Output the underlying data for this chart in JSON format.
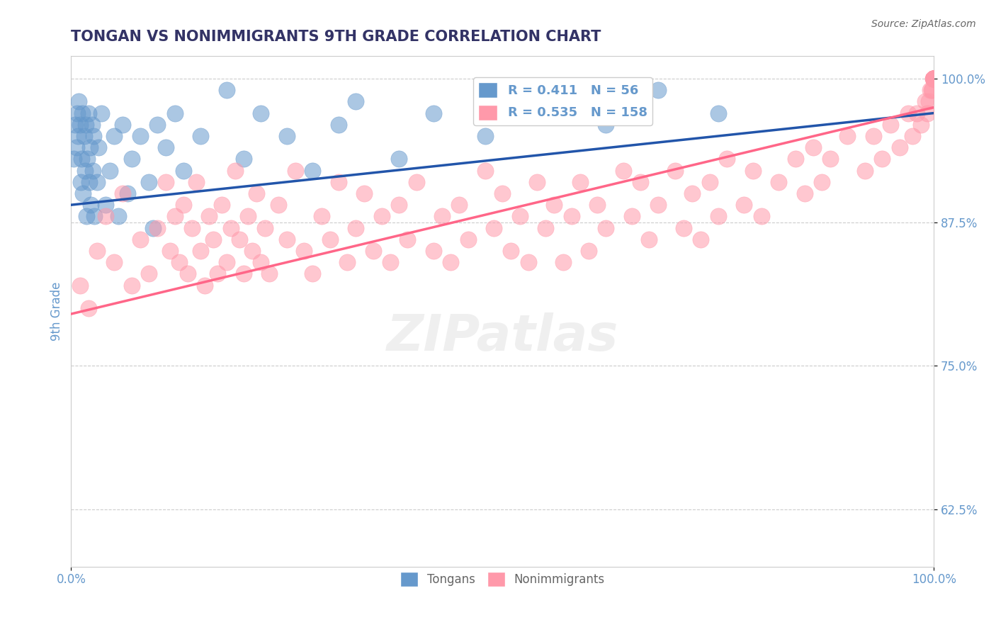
{
  "title": "TONGAN VS NONIMMIGRANTS 9TH GRADE CORRELATION CHART",
  "source_text": "Source: ZipAtlas.com",
  "xlabel": "",
  "ylabel": "9th Grade",
  "xlim": [
    0.0,
    1.0
  ],
  "ylim": [
    0.575,
    1.02
  ],
  "yticks": [
    0.625,
    0.75,
    0.875,
    1.0
  ],
  "ytick_labels": [
    "62.5%",
    "75.0%",
    "87.5%",
    "100.0%"
  ],
  "xticks": [
    0.0,
    1.0
  ],
  "xtick_labels": [
    "0.0%",
    "100.0%"
  ],
  "blue_color": "#6699CC",
  "pink_color": "#FF99AA",
  "blue_line_color": "#2255AA",
  "pink_line_color": "#FF6688",
  "title_color": "#333366",
  "axis_color": "#6699CC",
  "grid_color": "#CCCCCC",
  "legend_r_blue": "0.411",
  "legend_n_blue": "56",
  "legend_r_pink": "0.535",
  "legend_n_pink": "158",
  "legend_label_blue": "Tongans",
  "legend_label_pink": "Nonimmigrants",
  "watermark": "ZIPatlas",
  "blue_scatter_x": [
    0.003,
    0.005,
    0.006,
    0.007,
    0.008,
    0.009,
    0.01,
    0.011,
    0.012,
    0.013,
    0.014,
    0.015,
    0.016,
    0.017,
    0.018,
    0.019,
    0.02,
    0.021,
    0.022,
    0.023,
    0.024,
    0.025,
    0.026,
    0.027,
    0.03,
    0.032,
    0.035,
    0.04,
    0.045,
    0.05,
    0.055,
    0.06,
    0.065,
    0.07,
    0.08,
    0.09,
    0.095,
    0.1,
    0.11,
    0.12,
    0.13,
    0.15,
    0.18,
    0.2,
    0.22,
    0.25,
    0.28,
    0.31,
    0.33,
    0.38,
    0.42,
    0.48,
    0.55,
    0.62,
    0.68,
    0.75
  ],
  "blue_scatter_y": [
    0.93,
    0.96,
    0.94,
    0.97,
    0.95,
    0.98,
    0.96,
    0.91,
    0.93,
    0.97,
    0.9,
    0.95,
    0.92,
    0.96,
    0.88,
    0.93,
    0.97,
    0.91,
    0.94,
    0.89,
    0.96,
    0.92,
    0.95,
    0.88,
    0.91,
    0.94,
    0.97,
    0.89,
    0.92,
    0.95,
    0.88,
    0.96,
    0.9,
    0.93,
    0.95,
    0.91,
    0.87,
    0.96,
    0.94,
    0.97,
    0.92,
    0.95,
    0.99,
    0.93,
    0.97,
    0.95,
    0.92,
    0.96,
    0.98,
    0.93,
    0.97,
    0.95,
    0.98,
    0.96,
    0.99,
    0.97
  ],
  "pink_scatter_x": [
    0.01,
    0.02,
    0.03,
    0.04,
    0.05,
    0.06,
    0.07,
    0.08,
    0.09,
    0.1,
    0.11,
    0.115,
    0.12,
    0.125,
    0.13,
    0.135,
    0.14,
    0.145,
    0.15,
    0.155,
    0.16,
    0.165,
    0.17,
    0.175,
    0.18,
    0.185,
    0.19,
    0.195,
    0.2,
    0.205,
    0.21,
    0.215,
    0.22,
    0.225,
    0.23,
    0.24,
    0.25,
    0.26,
    0.27,
    0.28,
    0.29,
    0.3,
    0.31,
    0.32,
    0.33,
    0.34,
    0.35,
    0.36,
    0.37,
    0.38,
    0.39,
    0.4,
    0.42,
    0.43,
    0.44,
    0.45,
    0.46,
    0.48,
    0.49,
    0.5,
    0.51,
    0.52,
    0.53,
    0.54,
    0.55,
    0.56,
    0.57,
    0.58,
    0.59,
    0.6,
    0.61,
    0.62,
    0.64,
    0.65,
    0.66,
    0.67,
    0.68,
    0.7,
    0.71,
    0.72,
    0.73,
    0.74,
    0.75,
    0.76,
    0.78,
    0.79,
    0.8,
    0.82,
    0.84,
    0.85,
    0.86,
    0.87,
    0.88,
    0.9,
    0.92,
    0.93,
    0.94,
    0.95,
    0.96,
    0.97,
    0.975,
    0.98,
    0.985,
    0.99,
    0.992,
    0.994,
    0.996,
    0.997,
    0.998,
    0.999,
    1.0,
    1.0,
    1.0,
    1.0,
    1.0,
    1.0,
    1.0,
    1.0,
    1.0,
    1.0,
    1.0,
    1.0,
    1.0,
    1.0,
    1.0,
    1.0,
    1.0,
    1.0,
    1.0,
    1.0,
    1.0,
    1.0,
    1.0,
    1.0,
    1.0,
    1.0,
    1.0,
    1.0,
    1.0,
    1.0,
    1.0,
    1.0,
    1.0,
    1.0,
    1.0,
    1.0,
    1.0,
    1.0,
    1.0,
    1.0,
    1.0,
    1.0,
    1.0,
    1.0,
    1.0,
    1.0,
    1.0,
    1.0
  ],
  "pink_scatter_y": [
    0.82,
    0.8,
    0.85,
    0.88,
    0.84,
    0.9,
    0.82,
    0.86,
    0.83,
    0.87,
    0.91,
    0.85,
    0.88,
    0.84,
    0.89,
    0.83,
    0.87,
    0.91,
    0.85,
    0.82,
    0.88,
    0.86,
    0.83,
    0.89,
    0.84,
    0.87,
    0.92,
    0.86,
    0.83,
    0.88,
    0.85,
    0.9,
    0.84,
    0.87,
    0.83,
    0.89,
    0.86,
    0.92,
    0.85,
    0.83,
    0.88,
    0.86,
    0.91,
    0.84,
    0.87,
    0.9,
    0.85,
    0.88,
    0.84,
    0.89,
    0.86,
    0.91,
    0.85,
    0.88,
    0.84,
    0.89,
    0.86,
    0.92,
    0.87,
    0.9,
    0.85,
    0.88,
    0.84,
    0.91,
    0.87,
    0.89,
    0.84,
    0.88,
    0.91,
    0.85,
    0.89,
    0.87,
    0.92,
    0.88,
    0.91,
    0.86,
    0.89,
    0.92,
    0.87,
    0.9,
    0.86,
    0.91,
    0.88,
    0.93,
    0.89,
    0.92,
    0.88,
    0.91,
    0.93,
    0.9,
    0.94,
    0.91,
    0.93,
    0.95,
    0.92,
    0.95,
    0.93,
    0.96,
    0.94,
    0.97,
    0.95,
    0.97,
    0.96,
    0.98,
    0.97,
    0.98,
    0.99,
    0.99,
    0.99,
    1.0,
    1.0,
    1.0,
    1.0,
    1.0,
    1.0,
    1.0,
    1.0,
    1.0,
    1.0,
    1.0,
    1.0,
    1.0,
    1.0,
    1.0,
    1.0,
    1.0,
    1.0,
    1.0,
    1.0,
    1.0,
    1.0,
    1.0,
    1.0,
    1.0,
    1.0,
    1.0,
    1.0,
    1.0,
    1.0,
    1.0,
    1.0,
    1.0,
    1.0,
    1.0,
    1.0,
    1.0,
    1.0,
    1.0,
    1.0,
    1.0,
    1.0,
    1.0,
    1.0,
    1.0,
    1.0,
    1.0,
    1.0,
    1.0
  ],
  "blue_trendline_x": [
    0.0,
    1.0
  ],
  "blue_trendline_y": [
    0.89,
    0.97
  ],
  "pink_trendline_x": [
    0.0,
    1.0
  ],
  "pink_trendline_y": [
    0.795,
    0.975
  ]
}
